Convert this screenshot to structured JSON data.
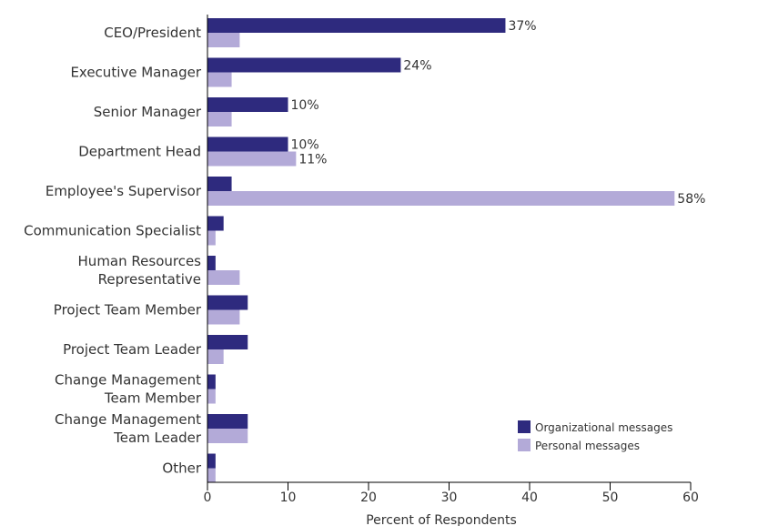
{
  "chart_data": {
    "type": "bar",
    "orientation": "horizontal",
    "categories": [
      [
        "CEO/President"
      ],
      [
        "Executive Manager"
      ],
      [
        "Senior Manager"
      ],
      [
        "Department Head"
      ],
      [
        "Employee's Supervisor"
      ],
      [
        "Communication Specialist"
      ],
      [
        "Human Resources",
        "Representative"
      ],
      [
        "Project Team Member"
      ],
      [
        "Project Team Leader"
      ],
      [
        "Change Management",
        "Team Member"
      ],
      [
        "Change Management",
        "Team Leader"
      ],
      [
        "Other"
      ]
    ],
    "series": [
      {
        "name": "Organizational messages",
        "color": "#2e2a7e",
        "values": [
          37,
          24,
          10,
          10,
          3,
          2,
          1,
          5,
          5,
          1,
          5,
          1
        ],
        "labels": [
          "37%",
          "24%",
          "10%",
          "10%",
          "",
          "",
          "",
          "",
          "",
          "",
          "",
          ""
        ]
      },
      {
        "name": "Personal messages",
        "color": "#b3aad8",
        "values": [
          4,
          3,
          3,
          11,
          58,
          1,
          4,
          4,
          2,
          1,
          5,
          1
        ],
        "labels": [
          "",
          "",
          "",
          "11%",
          "58%",
          "",
          "",
          "",
          "",
          "",
          "",
          ""
        ]
      }
    ],
    "xlabel": "Percent of Respondents",
    "ylabel": "",
    "xlim": [
      0,
      60
    ],
    "xticks": [
      "0",
      "10",
      "20",
      "30",
      "40",
      "50",
      "60"
    ],
    "legend_position": "bottom-right"
  }
}
